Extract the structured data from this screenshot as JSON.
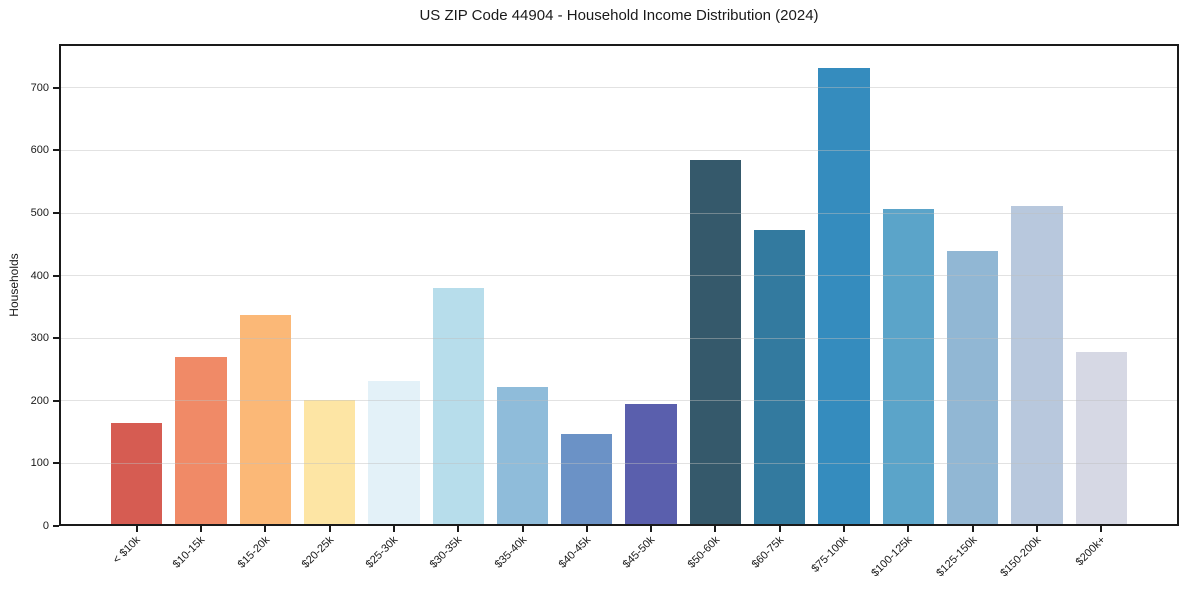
{
  "chart_data": {
    "type": "bar",
    "title": "US ZIP Code 44904 - Household Income Distribution (2024)",
    "xlabel": "",
    "ylabel": "Households",
    "categories": [
      "< $10k",
      "$10-15k",
      "$15-20k",
      "$20-25k",
      "$25-30k",
      "$30-35k",
      "$35-40k",
      "$40-45k",
      "$45-50k",
      "$50-60k",
      "$60-75k",
      "$75-100k",
      "$100-125k",
      "$125-150k",
      "$150-200k",
      "$200k+"
    ],
    "values": [
      165,
      270,
      337,
      201,
      232,
      380,
      222,
      147,
      195,
      584,
      473,
      732,
      506,
      440,
      511,
      278
    ],
    "bar_colors": [
      "#d65c52",
      "#f08a67",
      "#fbb877",
      "#fde5a4",
      "#e3f1f8",
      "#b7ddeb",
      "#8fbcda",
      "#6b92c6",
      "#5a5fad",
      "#35596b",
      "#337a9f",
      "#358cbe",
      "#5ba4c9",
      "#91b7d4",
      "#b8c8dd",
      "#d6d8e4"
    ],
    "yticks": [
      0,
      100,
      200,
      300,
      400,
      500,
      600,
      700
    ],
    "ylim": [
      0,
      770
    ],
    "grid": "horizontal",
    "legend": "none",
    "frame_color": "#1a1a1a",
    "background_color": "#ffffff"
  }
}
